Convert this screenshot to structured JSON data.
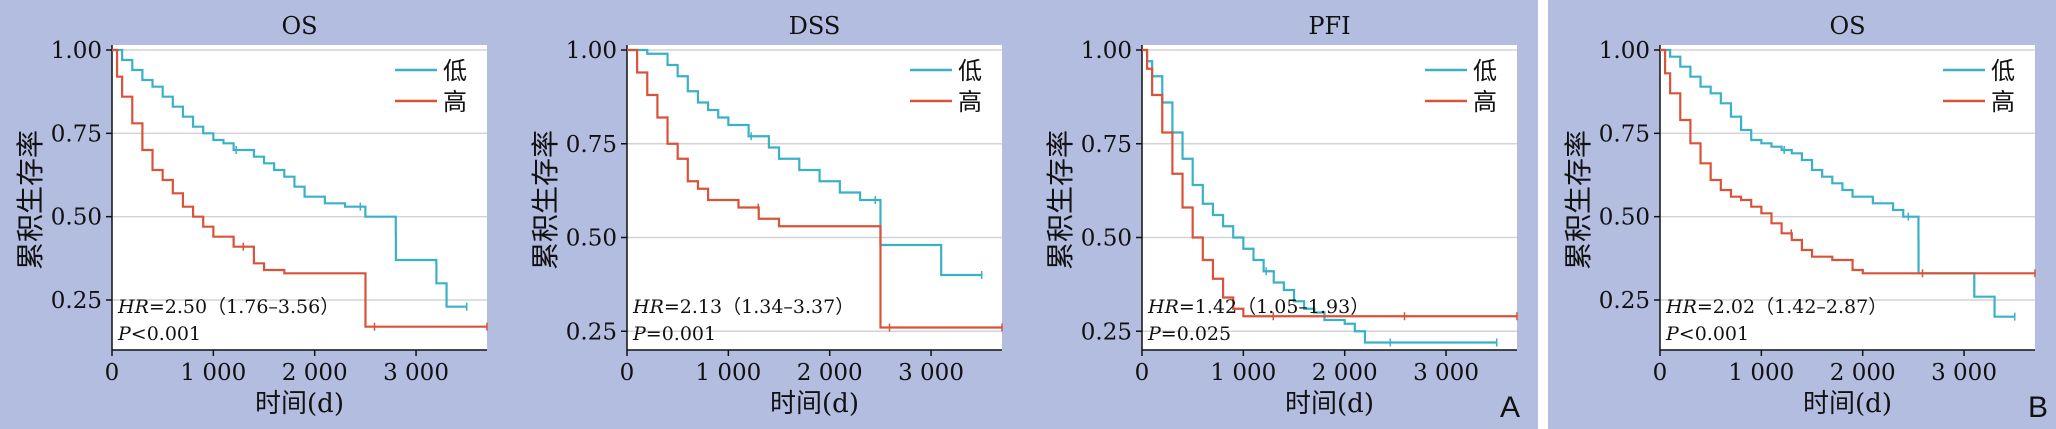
{
  "figure": {
    "panel_letters": [
      "A",
      "B"
    ]
  },
  "chart_data": [
    {
      "type": "line",
      "title": "OS",
      "xlabel": "时间(d)",
      "ylabel": "累积生存率",
      "xlim": [
        0,
        3700
      ],
      "ylim": [
        0.1,
        1.0
      ],
      "xticks": [
        0,
        1000,
        2000,
        3000
      ],
      "xtick_labels": [
        "0",
        "1 000",
        "2 000",
        "3 000"
      ],
      "yticks": [
        1.0,
        0.75,
        0.5,
        0.25
      ],
      "ytick_labels": [
        "1.00",
        "0.75",
        "0.50",
        "0.25"
      ],
      "legend": [
        "低",
        "高"
      ],
      "legend_position": "top-right",
      "annotation": {
        "hr_label": "HR",
        "hr_text": "=2.50（1.76–3.56）",
        "p_label": "P",
        "p_text": "<0.001"
      },
      "series": [
        {
          "name": "低",
          "color": "#3bb1c8",
          "points": [
            [
              0,
              1.0
            ],
            [
              100,
              0.97
            ],
            [
              200,
              0.94
            ],
            [
              300,
              0.91
            ],
            [
              400,
              0.89
            ],
            [
              500,
              0.86
            ],
            [
              600,
              0.83
            ],
            [
              700,
              0.8
            ],
            [
              800,
              0.77
            ],
            [
              900,
              0.75
            ],
            [
              1000,
              0.73
            ],
            [
              1100,
              0.72
            ],
            [
              1200,
              0.7
            ],
            [
              1400,
              0.68
            ],
            [
              1500,
              0.66
            ],
            [
              1600,
              0.64
            ],
            [
              1700,
              0.62
            ],
            [
              1800,
              0.59
            ],
            [
              1900,
              0.56
            ],
            [
              2100,
              0.54
            ],
            [
              2300,
              0.53
            ],
            [
              2500,
              0.5
            ],
            [
              2600,
              0.5
            ],
            [
              2700,
              0.5
            ],
            [
              2800,
              0.45
            ],
            [
              2801,
              0.37
            ],
            [
              3000,
              0.37
            ],
            [
              3200,
              0.36
            ],
            [
              3201,
              0.3
            ],
            [
              3300,
              0.3
            ],
            [
              3301,
              0.23
            ],
            [
              3500,
              0.23
            ]
          ]
        },
        {
          "name": "高",
          "color": "#d9533a",
          "points": [
            [
              0,
              1.0
            ],
            [
              50,
              0.92
            ],
            [
              100,
              0.86
            ],
            [
              200,
              0.78
            ],
            [
              300,
              0.7
            ],
            [
              400,
              0.64
            ],
            [
              500,
              0.61
            ],
            [
              600,
              0.57
            ],
            [
              700,
              0.53
            ],
            [
              800,
              0.5
            ],
            [
              900,
              0.47
            ],
            [
              1000,
              0.44
            ],
            [
              1200,
              0.41
            ],
            [
              1400,
              0.36
            ],
            [
              1500,
              0.34
            ],
            [
              1700,
              0.33
            ],
            [
              2000,
              0.33
            ],
            [
              2500,
              0.33
            ],
            [
              2501,
              0.17
            ],
            [
              2800,
              0.17
            ],
            [
              3700,
              0.17
            ]
          ]
        }
      ]
    },
    {
      "type": "line",
      "title": "DSS",
      "xlabel": "时间(d)",
      "ylabel": "累积生存率",
      "xlim": [
        0,
        3700
      ],
      "ylim": [
        0.2,
        1.0
      ],
      "xticks": [
        0,
        1000,
        2000,
        3000
      ],
      "xtick_labels": [
        "0",
        "1 000",
        "2 000",
        "3 000"
      ],
      "yticks": [
        1.0,
        0.75,
        0.5,
        0.25
      ],
      "ytick_labels": [
        "1.00",
        "0.75",
        "0.50",
        "0.25"
      ],
      "legend": [
        "低",
        "高"
      ],
      "legend_position": "top-right",
      "annotation": {
        "hr_label": "HR",
        "hr_text": "=2.13（1.34–3.37）",
        "p_label": "P",
        "p_text": "=0.001"
      },
      "series": [
        {
          "name": "低",
          "color": "#3bb1c8",
          "points": [
            [
              0,
              1.0
            ],
            [
              200,
              0.99
            ],
            [
              400,
              0.96
            ],
            [
              500,
              0.93
            ],
            [
              600,
              0.89
            ],
            [
              700,
              0.86
            ],
            [
              800,
              0.84
            ],
            [
              900,
              0.82
            ],
            [
              1000,
              0.8
            ],
            [
              1200,
              0.77
            ],
            [
              1400,
              0.74
            ],
            [
              1500,
              0.71
            ],
            [
              1700,
              0.68
            ],
            [
              1900,
              0.65
            ],
            [
              2100,
              0.62
            ],
            [
              2300,
              0.6
            ],
            [
              2500,
              0.6
            ],
            [
              2501,
              0.48
            ],
            [
              3000,
              0.48
            ],
            [
              3100,
              0.4
            ],
            [
              3500,
              0.4
            ]
          ]
        },
        {
          "name": "高",
          "color": "#d9533a",
          "points": [
            [
              0,
              1.0
            ],
            [
              100,
              0.94
            ],
            [
              200,
              0.88
            ],
            [
              300,
              0.82
            ],
            [
              400,
              0.75
            ],
            [
              500,
              0.71
            ],
            [
              600,
              0.65
            ],
            [
              700,
              0.63
            ],
            [
              800,
              0.6
            ],
            [
              1000,
              0.6
            ],
            [
              1100,
              0.58
            ],
            [
              1300,
              0.55
            ],
            [
              1500,
              0.53
            ],
            [
              2500,
              0.53
            ],
            [
              2501,
              0.26
            ],
            [
              3700,
              0.26
            ]
          ]
        }
      ]
    },
    {
      "type": "line",
      "title": "PFI",
      "xlabel": "时间(d)",
      "ylabel": "累积生存率",
      "xlim": [
        0,
        3700
      ],
      "ylim": [
        0.2,
        1.0
      ],
      "xticks": [
        0,
        1000,
        2000,
        3000
      ],
      "xtick_labels": [
        "0",
        "1 000",
        "2 000",
        "3 000"
      ],
      "yticks": [
        1.0,
        0.75,
        0.5,
        0.25
      ],
      "ytick_labels": [
        "1.00",
        "0.75",
        "0.50",
        "0.25"
      ],
      "legend": [
        "低",
        "高"
      ],
      "legend_position": "top-right",
      "annotation": {
        "hr_label": "HR",
        "hr_text": "=1.42（1.05–1.93）",
        "p_label": "P",
        "p_text": "=0.025"
      },
      "series": [
        {
          "name": "低",
          "color": "#3bb1c8",
          "points": [
            [
              0,
              1.0
            ],
            [
              50,
              0.97
            ],
            [
              100,
              0.93
            ],
            [
              200,
              0.86
            ],
            [
              300,
              0.78
            ],
            [
              400,
              0.71
            ],
            [
              500,
              0.64
            ],
            [
              600,
              0.59
            ],
            [
              700,
              0.56
            ],
            [
              800,
              0.53
            ],
            [
              900,
              0.5
            ],
            [
              1000,
              0.47
            ],
            [
              1100,
              0.44
            ],
            [
              1200,
              0.41
            ],
            [
              1300,
              0.38
            ],
            [
              1400,
              0.36
            ],
            [
              1500,
              0.33
            ],
            [
              1600,
              0.31
            ],
            [
              1700,
              0.3
            ],
            [
              1800,
              0.28
            ],
            [
              2000,
              0.27
            ],
            [
              2100,
              0.25
            ],
            [
              2200,
              0.22
            ],
            [
              3500,
              0.22
            ]
          ]
        },
        {
          "name": "高",
          "color": "#d9533a",
          "points": [
            [
              0,
              1.0
            ],
            [
              50,
              0.95
            ],
            [
              100,
              0.88
            ],
            [
              200,
              0.78
            ],
            [
              300,
              0.67
            ],
            [
              400,
              0.58
            ],
            [
              500,
              0.5
            ],
            [
              600,
              0.44
            ],
            [
              700,
              0.39
            ],
            [
              800,
              0.34
            ],
            [
              900,
              0.31
            ],
            [
              1000,
              0.29
            ],
            [
              1100,
              0.29
            ],
            [
              3700,
              0.29
            ]
          ]
        }
      ]
    },
    {
      "type": "line",
      "title": "OS",
      "xlabel": "时间(d)",
      "ylabel": "累积生存率",
      "xlim": [
        0,
        3700
      ],
      "ylim": [
        0.1,
        1.0
      ],
      "xticks": [
        0,
        1000,
        2000,
        3000
      ],
      "xtick_labels": [
        "0",
        "1 000",
        "2 000",
        "3 000"
      ],
      "yticks": [
        1.0,
        0.75,
        0.5,
        0.25
      ],
      "ytick_labels": [
        "1.00",
        "0.75",
        "0.50",
        "0.25"
      ],
      "legend": [
        "低",
        "高"
      ],
      "legend_position": "top-right",
      "annotation": {
        "hr_label": "HR",
        "hr_text": "=2.02（1.42–2.87）",
        "p_label": "P",
        "p_text": "<0.001"
      },
      "series": [
        {
          "name": "低",
          "color": "#3bb1c8",
          "points": [
            [
              0,
              1.0
            ],
            [
              100,
              0.98
            ],
            [
              200,
              0.95
            ],
            [
              300,
              0.92
            ],
            [
              400,
              0.89
            ],
            [
              500,
              0.87
            ],
            [
              600,
              0.84
            ],
            [
              700,
              0.8
            ],
            [
              800,
              0.76
            ],
            [
              900,
              0.73
            ],
            [
              1000,
              0.72
            ],
            [
              1100,
              0.71
            ],
            [
              1200,
              0.7
            ],
            [
              1300,
              0.69
            ],
            [
              1400,
              0.67
            ],
            [
              1500,
              0.64
            ],
            [
              1600,
              0.62
            ],
            [
              1700,
              0.6
            ],
            [
              1800,
              0.58
            ],
            [
              1900,
              0.56
            ],
            [
              2100,
              0.54
            ],
            [
              2300,
              0.52
            ],
            [
              2400,
              0.5
            ],
            [
              2500,
              0.5
            ],
            [
              2550,
              0.43
            ],
            [
              2551,
              0.33
            ],
            [
              3100,
              0.33
            ],
            [
              3101,
              0.26
            ],
            [
              3300,
              0.26
            ],
            [
              3301,
              0.2
            ],
            [
              3500,
              0.2
            ]
          ]
        },
        {
          "name": "高",
          "color": "#d9533a",
          "points": [
            [
              0,
              1.0
            ],
            [
              50,
              0.93
            ],
            [
              100,
              0.87
            ],
            [
              200,
              0.79
            ],
            [
              300,
              0.72
            ],
            [
              400,
              0.66
            ],
            [
              500,
              0.61
            ],
            [
              600,
              0.58
            ],
            [
              700,
              0.56
            ],
            [
              800,
              0.55
            ],
            [
              900,
              0.53
            ],
            [
              1000,
              0.51
            ],
            [
              1100,
              0.48
            ],
            [
              1200,
              0.45
            ],
            [
              1300,
              0.43
            ],
            [
              1400,
              0.4
            ],
            [
              1500,
              0.38
            ],
            [
              1700,
              0.37
            ],
            [
              1900,
              0.34
            ],
            [
              2000,
              0.34
            ],
            [
              2001,
              0.33
            ],
            [
              3700,
              0.33
            ]
          ]
        }
      ]
    }
  ]
}
